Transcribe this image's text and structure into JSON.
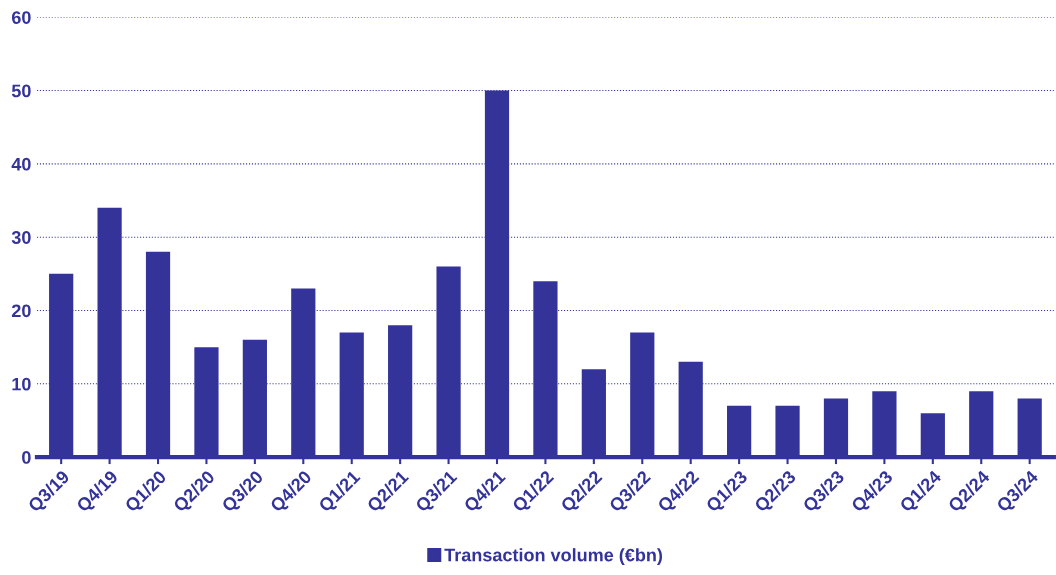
{
  "chart_data": {
    "type": "bar",
    "categories": [
      "Q3/19",
      "Q4/19",
      "Q1/20",
      "Q2/20",
      "Q3/20",
      "Q4/20",
      "Q1/21",
      "Q2/21",
      "Q3/21",
      "Q4/21",
      "Q1/22",
      "Q2/22",
      "Q3/22",
      "Q4/22",
      "Q1/23",
      "Q2/23",
      "Q3/23",
      "Q4/23",
      "Q1/24",
      "Q2/24",
      "Q3/24"
    ],
    "series": [
      {
        "name": "Transaction volume (€bn)",
        "color": "#333399",
        "values": [
          25,
          34,
          28,
          15,
          16,
          23,
          17,
          18,
          26,
          50,
          24,
          12,
          17,
          13,
          7,
          7,
          8,
          9,
          6,
          9,
          8
        ]
      }
    ],
    "ylim": [
      0,
      60
    ],
    "yticks": [
      0,
      10,
      20,
      30,
      40,
      50,
      60
    ],
    "grid": "y",
    "legend": "bottom"
  }
}
